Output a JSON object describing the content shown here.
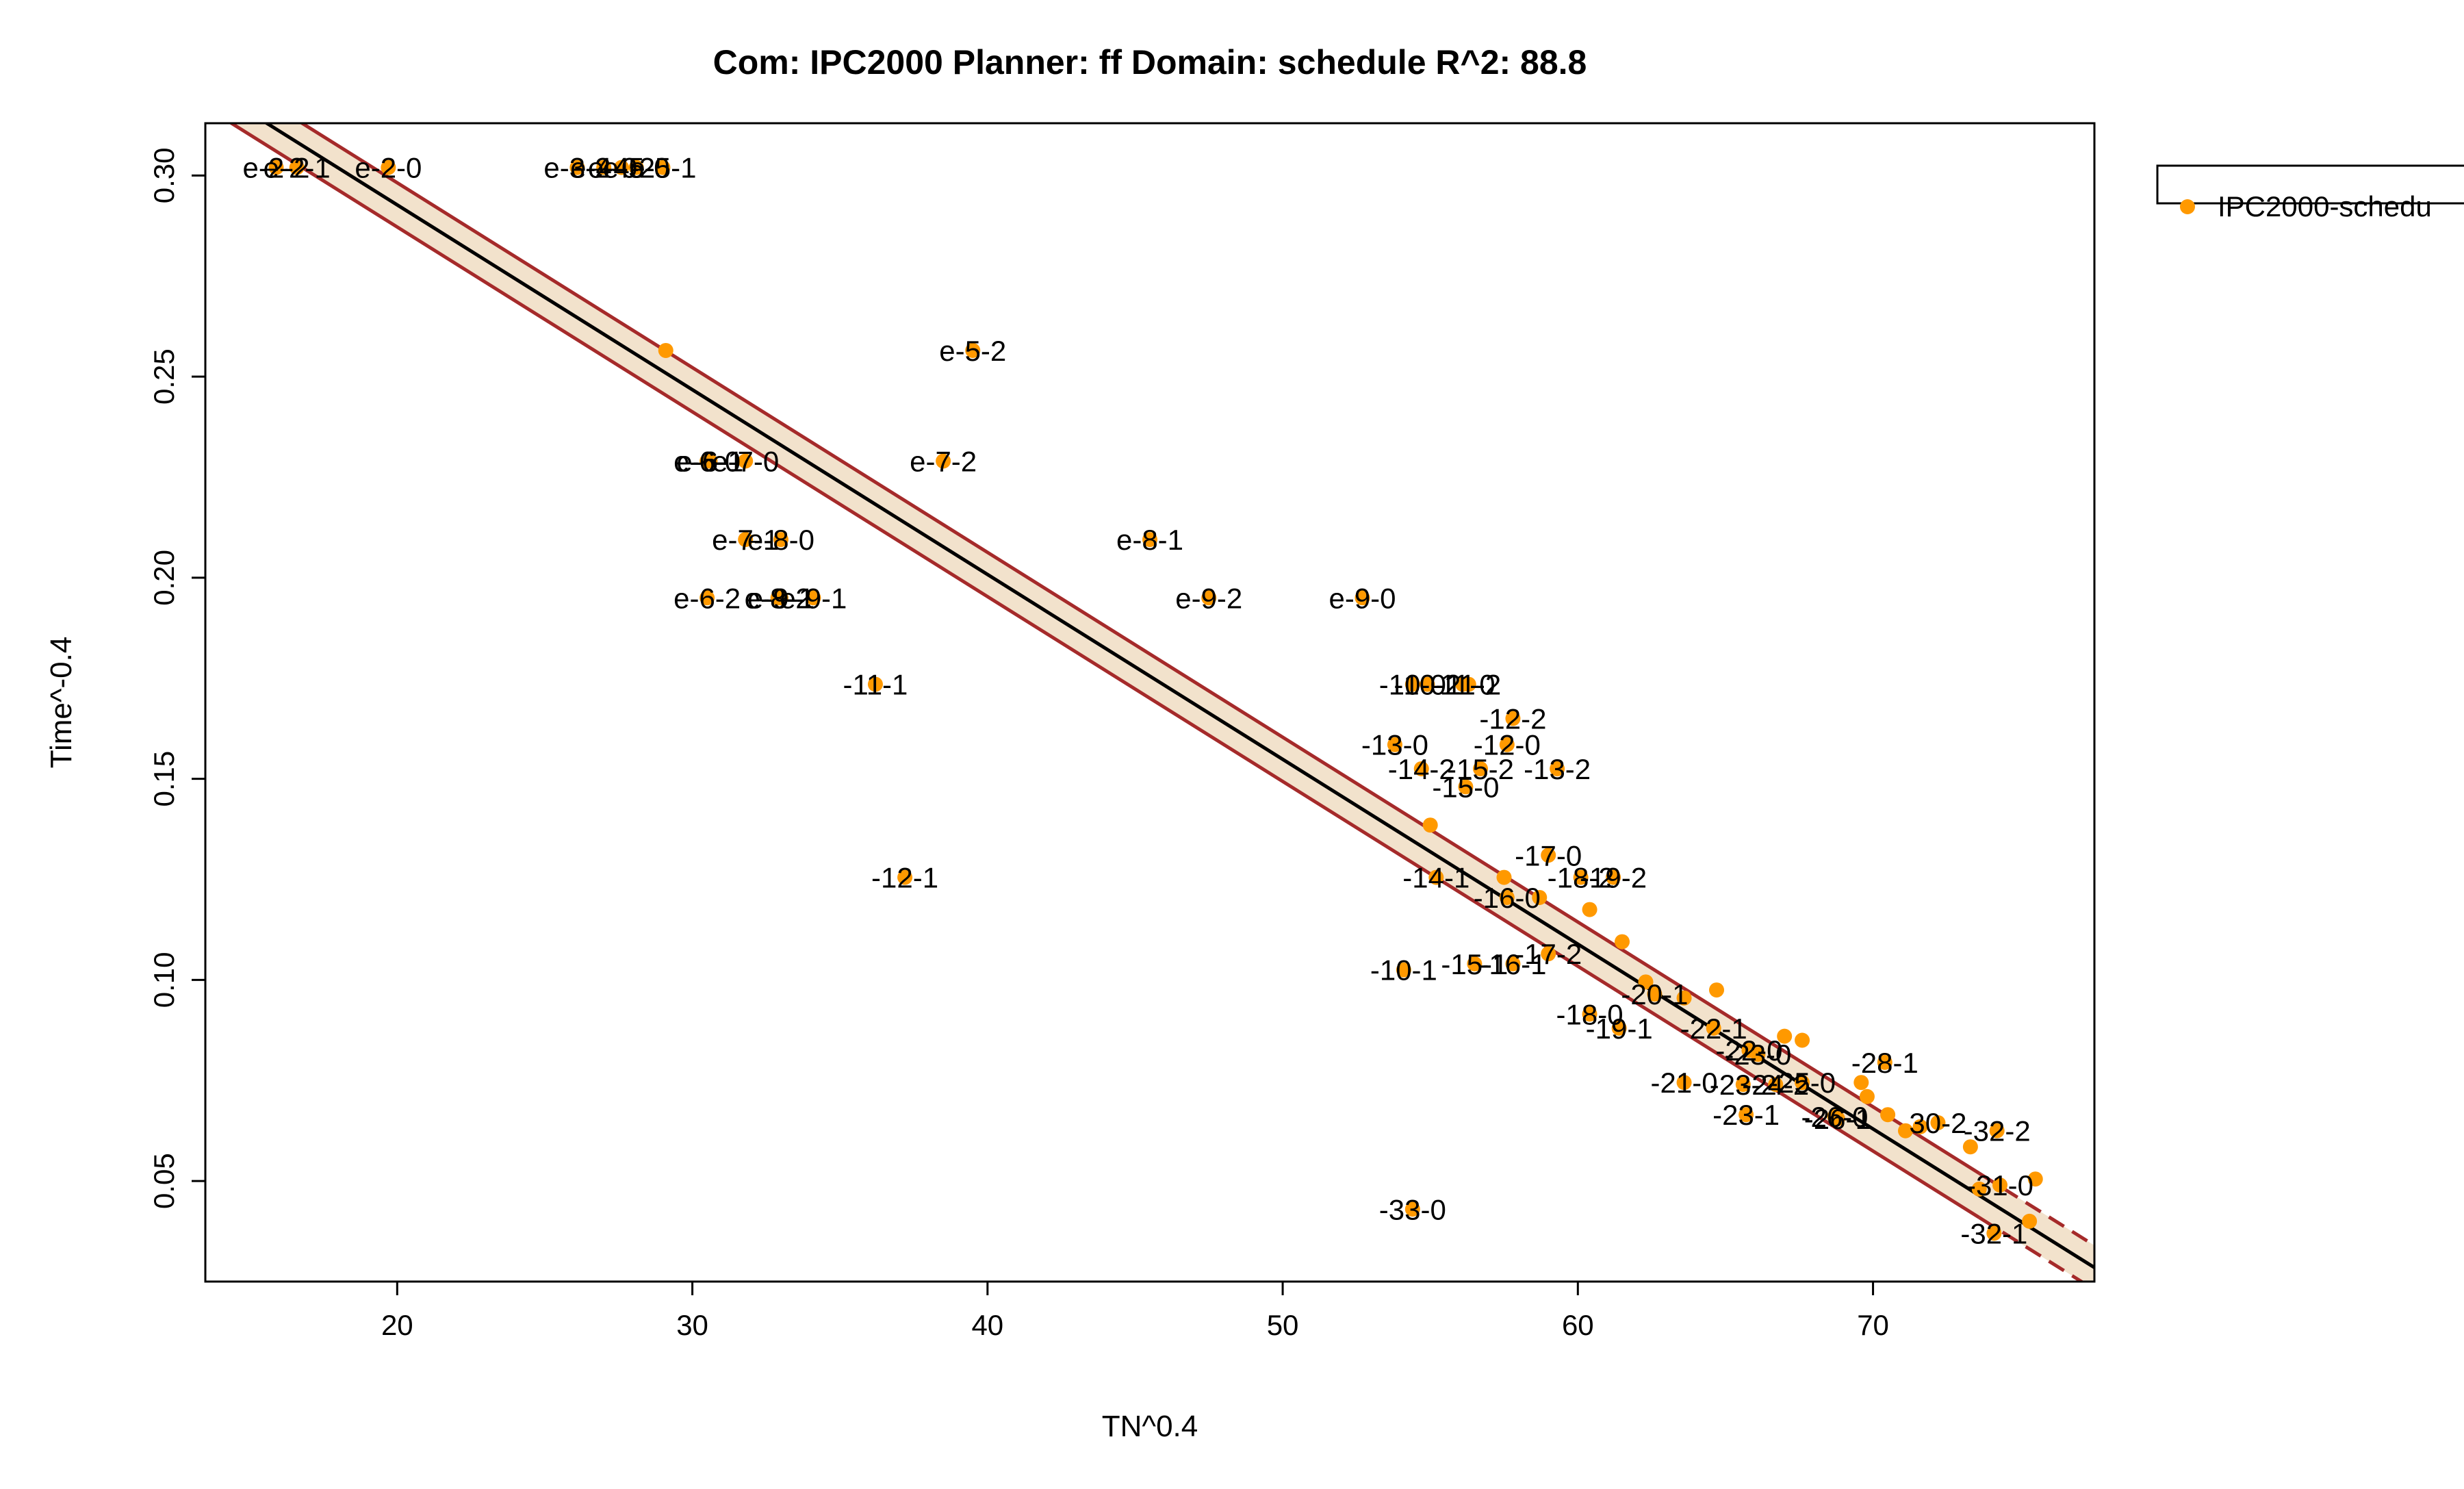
{
  "chart_data": {
    "type": "scatter",
    "title": "Com: IPC2000 Planner: ff Domain: schedule R^2: 88.8",
    "xlabel": "TN^0.4",
    "ylabel": "Time^-0.4",
    "xlim": [
      13.5,
      77.5
    ],
    "ylim": [
      0.025,
      0.313
    ],
    "xticks": [
      20,
      30,
      40,
      50,
      60,
      70
    ],
    "yticks": [
      0.05,
      0.1,
      0.15,
      0.2,
      0.25,
      0.3
    ],
    "legend": {
      "position": "top-right",
      "entries": [
        "IPC2000-schedu"
      ]
    },
    "colors": {
      "points": "#FF9900",
      "fit": "#000000",
      "band": "#A52A2A",
      "band_fill": "#F2E2CC"
    },
    "fit": {
      "slope": -0.004595,
      "intercept": 0.3846,
      "halfwidth": 0.0055,
      "dashed_from_x": 73.6
    },
    "series": [
      {
        "name": "IPC2000-schedu",
        "points": [
          {
            "x": 15.9,
            "y": 0.302,
            "label": "e-2-2"
          },
          {
            "x": 16.6,
            "y": 0.302,
            "label": "e-2-1"
          },
          {
            "x": 19.7,
            "y": 0.302,
            "label": "e-2-0"
          },
          {
            "x": 26.1,
            "y": 0.302,
            "label": "e-3-2"
          },
          {
            "x": 27.0,
            "y": 0.302,
            "label": "e-4-0"
          },
          {
            "x": 27.6,
            "y": 0.302,
            "label": "e-4-2"
          },
          {
            "x": 28.1,
            "y": 0.302,
            "label": "e-5-0"
          },
          {
            "x": 29.0,
            "y": 0.302,
            "label": "e-5-1"
          },
          {
            "x": 29.1,
            "y": 0.2565,
            "label": ""
          },
          {
            "x": 39.5,
            "y": 0.2565,
            "label": "e-5-2"
          },
          {
            "x": 30.5,
            "y": 0.229,
            "label": "e-6-0"
          },
          {
            "x": 30.6,
            "y": 0.229,
            "label": "e-6-1"
          },
          {
            "x": 31.8,
            "y": 0.229,
            "label": "e-7-0"
          },
          {
            "x": 38.5,
            "y": 0.229,
            "label": "e-7-2"
          },
          {
            "x": 31.8,
            "y": 0.2095,
            "label": "e-7-1"
          },
          {
            "x": 33.0,
            "y": 0.2095,
            "label": "e-8-0"
          },
          {
            "x": 45.5,
            "y": 0.2095,
            "label": "e-8-1"
          },
          {
            "x": 30.5,
            "y": 0.195,
            "label": "e-6-2"
          },
          {
            "x": 32.9,
            "y": 0.195,
            "label": "e-8-2"
          },
          {
            "x": 33.0,
            "y": 0.195,
            "label": "e-9-1"
          },
          {
            "x": 34.1,
            "y": 0.195,
            "label": "e-9-1"
          },
          {
            "x": 47.5,
            "y": 0.195,
            "label": "e-9-2"
          },
          {
            "x": 52.7,
            "y": 0.195,
            "label": "e-9-0"
          },
          {
            "x": 36.2,
            "y": 0.1735,
            "label": "-11-1"
          },
          {
            "x": 54.4,
            "y": 0.1735,
            "label": "-10-0"
          },
          {
            "x": 54.9,
            "y": 0.1735,
            "label": "-10-2"
          },
          {
            "x": 56.1,
            "y": 0.1735,
            "label": "-11-0"
          },
          {
            "x": 56.3,
            "y": 0.1735,
            "label": "-11-2"
          },
          {
            "x": 57.8,
            "y": 0.165,
            "label": "-12-2"
          },
          {
            "x": 53.8,
            "y": 0.1585,
            "label": "-13-0"
          },
          {
            "x": 57.6,
            "y": 0.1585,
            "label": "-12-0"
          },
          {
            "x": 54.7,
            "y": 0.1525,
            "label": "-14-2"
          },
          {
            "x": 56.7,
            "y": 0.1525,
            "label": "-15-2"
          },
          {
            "x": 59.3,
            "y": 0.1525,
            "label": "-13-2"
          },
          {
            "x": 56.2,
            "y": 0.148,
            "label": "-15-0"
          },
          {
            "x": 55.0,
            "y": 0.1385,
            "label": ""
          },
          {
            "x": 59.0,
            "y": 0.131,
            "label": "-17-0"
          },
          {
            "x": 37.2,
            "y": 0.1255,
            "label": "-12-1"
          },
          {
            "x": 55.2,
            "y": 0.1255,
            "label": "-14-1"
          },
          {
            "x": 57.5,
            "y": 0.1255,
            "label": ""
          },
          {
            "x": 60.1,
            "y": 0.1255,
            "label": "-18-2"
          },
          {
            "x": 61.2,
            "y": 0.1255,
            "label": "-19-2"
          },
          {
            "x": 57.6,
            "y": 0.1205,
            "label": "-16-0"
          },
          {
            "x": 58.7,
            "y": 0.1205,
            "label": ""
          },
          {
            "x": 60.4,
            "y": 0.1175,
            "label": ""
          },
          {
            "x": 61.5,
            "y": 0.1095,
            "label": ""
          },
          {
            "x": 59.0,
            "y": 0.1065,
            "label": "-17-2"
          },
          {
            "x": 54.1,
            "y": 0.1025,
            "label": "-10-1"
          },
          {
            "x": 56.5,
            "y": 0.104,
            "label": "-15-1"
          },
          {
            "x": 57.8,
            "y": 0.104,
            "label": "-16-1"
          },
          {
            "x": 62.3,
            "y": 0.0995,
            "label": ""
          },
          {
            "x": 62.6,
            "y": 0.0965,
            "label": "-20-1"
          },
          {
            "x": 64.7,
            "y": 0.0975,
            "label": ""
          },
          {
            "x": 63.6,
            "y": 0.0955,
            "label": ""
          },
          {
            "x": 60.4,
            "y": 0.0915,
            "label": "-18-0"
          },
          {
            "x": 61.4,
            "y": 0.088,
            "label": "-19-1"
          },
          {
            "x": 64.6,
            "y": 0.088,
            "label": "-22-1"
          },
          {
            "x": 65.8,
            "y": 0.0825,
            "label": "-22-0"
          },
          {
            "x": 66.1,
            "y": 0.0815,
            "label": "-23-0"
          },
          {
            "x": 67.0,
            "y": 0.086,
            "label": ""
          },
          {
            "x": 67.6,
            "y": 0.085,
            "label": ""
          },
          {
            "x": 70.4,
            "y": 0.0795,
            "label": "-28-1"
          },
          {
            "x": 63.6,
            "y": 0.0745,
            "label": "-21-0"
          },
          {
            "x": 65.6,
            "y": 0.074,
            "label": "-23-2"
          },
          {
            "x": 66.7,
            "y": 0.074,
            "label": "-24-2"
          },
          {
            "x": 67.6,
            "y": 0.0745,
            "label": "-25-0"
          },
          {
            "x": 69.6,
            "y": 0.0745,
            "label": ""
          },
          {
            "x": 69.8,
            "y": 0.071,
            "label": ""
          },
          {
            "x": 65.7,
            "y": 0.0665,
            "label": "-23-1"
          },
          {
            "x": 68.7,
            "y": 0.066,
            "label": "-26-0"
          },
          {
            "x": 68.8,
            "y": 0.0655,
            "label": "-26-1"
          },
          {
            "x": 70.5,
            "y": 0.0665,
            "label": ""
          },
          {
            "x": 71.1,
            "y": 0.0625,
            "label": ""
          },
          {
            "x": 71.6,
            "y": 0.0635,
            "label": ""
          },
          {
            "x": 72.2,
            "y": 0.0645,
            "label": "30-2"
          },
          {
            "x": 74.2,
            "y": 0.0625,
            "label": "-32-2"
          },
          {
            "x": 73.3,
            "y": 0.0585,
            "label": ""
          },
          {
            "x": 73.6,
            "y": 0.048,
            "label": ""
          },
          {
            "x": 74.3,
            "y": 0.049,
            "label": "-31-0"
          },
          {
            "x": 75.5,
            "y": 0.0505,
            "label": ""
          },
          {
            "x": 74.1,
            "y": 0.037,
            "label": "-32-1"
          },
          {
            "x": 75.3,
            "y": 0.04,
            "label": ""
          },
          {
            "x": 54.4,
            "y": 0.043,
            "label": "-33-0"
          }
        ]
      }
    ]
  }
}
